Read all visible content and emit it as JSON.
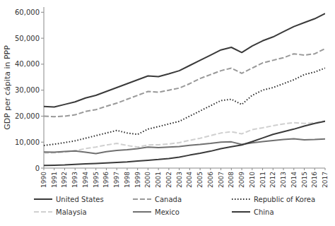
{
  "chart_data": {
    "type": "line",
    "y_label": "GDP per cápita in PPP",
    "x": [
      1990,
      1991,
      1992,
      1993,
      1994,
      1995,
      1996,
      1997,
      1998,
      1999,
      2000,
      2001,
      2002,
      2003,
      2004,
      2005,
      2006,
      2007,
      2008,
      2009,
      2010,
      2011,
      2012,
      2013,
      2014,
      2015,
      2016,
      2017
    ],
    "series": [
      {
        "name": "United States",
        "color": "#3a3a3a",
        "line_style": "solid",
        "values": [
          23700,
          23500,
          24500,
          25500,
          27000,
          28000,
          29500,
          31000,
          32500,
          34000,
          35500,
          35200,
          36300,
          37500,
          39500,
          41500,
          43500,
          45500,
          46500,
          44500,
          47000,
          49000,
          50500,
          52500,
          54500,
          56000,
          57500,
          59500
        ]
      },
      {
        "name": "Canada",
        "color": "#999999",
        "line_style": "dashed",
        "values": [
          20000,
          19800,
          20000,
          20500,
          21800,
          22500,
          23800,
          25000,
          26500,
          28000,
          29500,
          29200,
          30000,
          30800,
          32500,
          34500,
          36000,
          37500,
          38500,
          36500,
          38500,
          40500,
          41500,
          42500,
          44000,
          43500,
          44000,
          46000
        ]
      },
      {
        "name": "Republic of Korea",
        "color": "#2a2a2a",
        "line_style": "dotted",
        "values": [
          8700,
          9200,
          9800,
          10500,
          11500,
          12500,
          13500,
          14500,
          13500,
          13000,
          15000,
          16000,
          17000,
          18000,
          20000,
          22000,
          24000,
          26000,
          26500,
          24500,
          28000,
          30000,
          31000,
          32500,
          34000,
          36000,
          37000,
          38500
        ]
      },
      {
        "name": "Malaysia",
        "color": "#d0d0d0",
        "line_style": "dashed",
        "values": [
          5800,
          5900,
          6200,
          6700,
          7500,
          8100,
          8900,
          9500,
          8700,
          8100,
          8900,
          9000,
          9300,
          9800,
          10700,
          11500,
          12500,
          13500,
          14000,
          13200,
          14800,
          15500,
          16300,
          17000,
          17500,
          17200,
          17400,
          18200
        ]
      },
      {
        "name": "Mexico",
        "color": "#707070",
        "line_style": "solid",
        "values": [
          6200,
          6100,
          6400,
          6600,
          6100,
          5600,
          6300,
          6800,
          7100,
          7500,
          8100,
          7900,
          8100,
          8300,
          8800,
          9100,
          9500,
          10000,
          10100,
          9100,
          9700,
          10200,
          10600,
          11000,
          11300,
          10900,
          11000,
          11200
        ]
      },
      {
        "name": "China",
        "color": "#3a3a3a",
        "line_style": "solid",
        "values": [
          1000,
          1100,
          1200,
          1400,
          1600,
          1800,
          2000,
          2200,
          2400,
          2700,
          3000,
          3300,
          3700,
          4200,
          5000,
          5700,
          6500,
          7500,
          8200,
          8900,
          10200,
          11600,
          13000,
          14000,
          15000,
          16200,
          17200,
          18000
        ]
      }
    ],
    "xlim": [
      1990,
      2017
    ],
    "xticks": [
      1990,
      1991,
      1992,
      1993,
      1994,
      1995,
      1996,
      1997,
      1998,
      1999,
      2000,
      2001,
      2002,
      2003,
      2004,
      2005,
      2006,
      2007,
      2008,
      2009,
      2010,
      2011,
      2012,
      2013,
      2014,
      2015,
      2016,
      2017
    ],
    "ylim": [
      0,
      62000
    ],
    "yticks": [
      0,
      {
        "value": 10000,
        "label": "10,000"
      },
      {
        "value": 20000,
        "label": "20,000"
      },
      {
        "value": 30000,
        "label": "30,000"
      },
      {
        "value": 40000,
        "label": "40,000"
      },
      {
        "value": 50000,
        "label": "50,000"
      },
      {
        "value": 60000,
        "label": "60,000"
      }
    ],
    "grid": false,
    "legend": "bottom"
  }
}
